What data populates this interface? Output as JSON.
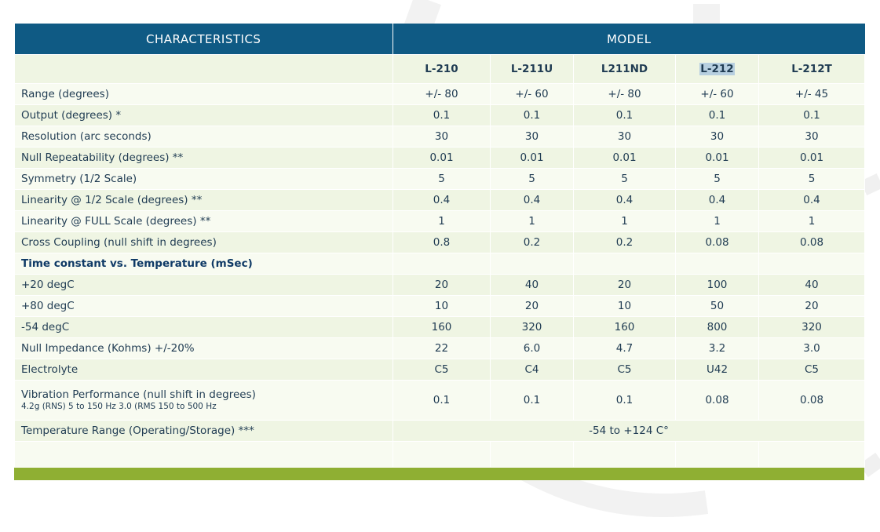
{
  "header": {
    "characteristics": "CHARACTERISTICS",
    "model": "MODEL"
  },
  "models": [
    "L-210",
    "L-211U",
    "L211ND",
    "L-212",
    "L-212T"
  ],
  "rows": [
    {
      "label": "Range (degrees)",
      "values": [
        "+/- 80",
        "+/- 60",
        "+/- 80",
        "+/- 60",
        "+/- 45"
      ]
    },
    {
      "label": "Output (degrees) *",
      "values": [
        "0.1",
        "0.1",
        "0.1",
        "0.1",
        "0.1"
      ]
    },
    {
      "label": "Resolution (arc seconds)",
      "values": [
        "30",
        "30",
        "30",
        "30",
        "30"
      ]
    },
    {
      "label": "Null Repeatability (degrees) **",
      "values": [
        "0.01",
        "0.01",
        "0.01",
        "0.01",
        "0.01"
      ]
    },
    {
      "label": "Symmetry (1/2 Scale)",
      "values": [
        "5",
        "5",
        "5",
        "5",
        "5"
      ]
    },
    {
      "label": "Linearity @ 1/2 Scale (degrees) **",
      "values": [
        "0.4",
        "0.4",
        "0.4",
        "0.4",
        "0.4"
      ]
    },
    {
      "label": "Linearity @ FULL Scale  (degrees) **",
      "values": [
        "1",
        "1",
        "1",
        "1",
        "1"
      ]
    },
    {
      "label": "Cross Coupling (null shift in degrees)",
      "values": [
        "0.8",
        "0.2",
        "0.2",
        "0.08",
        "0.08"
      ]
    }
  ],
  "section_title": "Time constant vs. Temperature (mSec)",
  "rows2": [
    {
      "label": "+20 degC",
      "values": [
        "20",
        "40",
        "20",
        "100",
        "40"
      ]
    },
    {
      "label": "+80 degC",
      "values": [
        "10",
        "20",
        "10",
        "50",
        "20"
      ]
    },
    {
      "label": "-54 degC",
      "values": [
        "160",
        "320",
        "160",
        "800",
        "320"
      ]
    },
    {
      "label": "Null Impedance (Kohms) +/-20%",
      "values": [
        "22",
        "6.0",
        "4.7",
        "3.2",
        "3.0"
      ]
    },
    {
      "label": "Electrolyte",
      "values": [
        "C5",
        "C4",
        "C5",
        "U42",
        "C5"
      ]
    }
  ],
  "vibration": {
    "label": "Vibration Performance (null shift in degrees)",
    "sublabel": "4.2g (RNS) 5 to 150 Hz 3.0 (RMS 150 to 500 Hz",
    "values": [
      "0.1",
      "0.1",
      "0.1",
      "0.08",
      "0.08"
    ]
  },
  "temperature": {
    "label": "Temperature Range (Operating/Storage) ***",
    "value": "-54 to +124 C°"
  },
  "colors": {
    "header_bg": "#0f5a84",
    "row_odd": "#eff5e3",
    "row_even": "#f8fbf1",
    "footer_bar": "#8faf33",
    "text": "#1f3b52"
  }
}
